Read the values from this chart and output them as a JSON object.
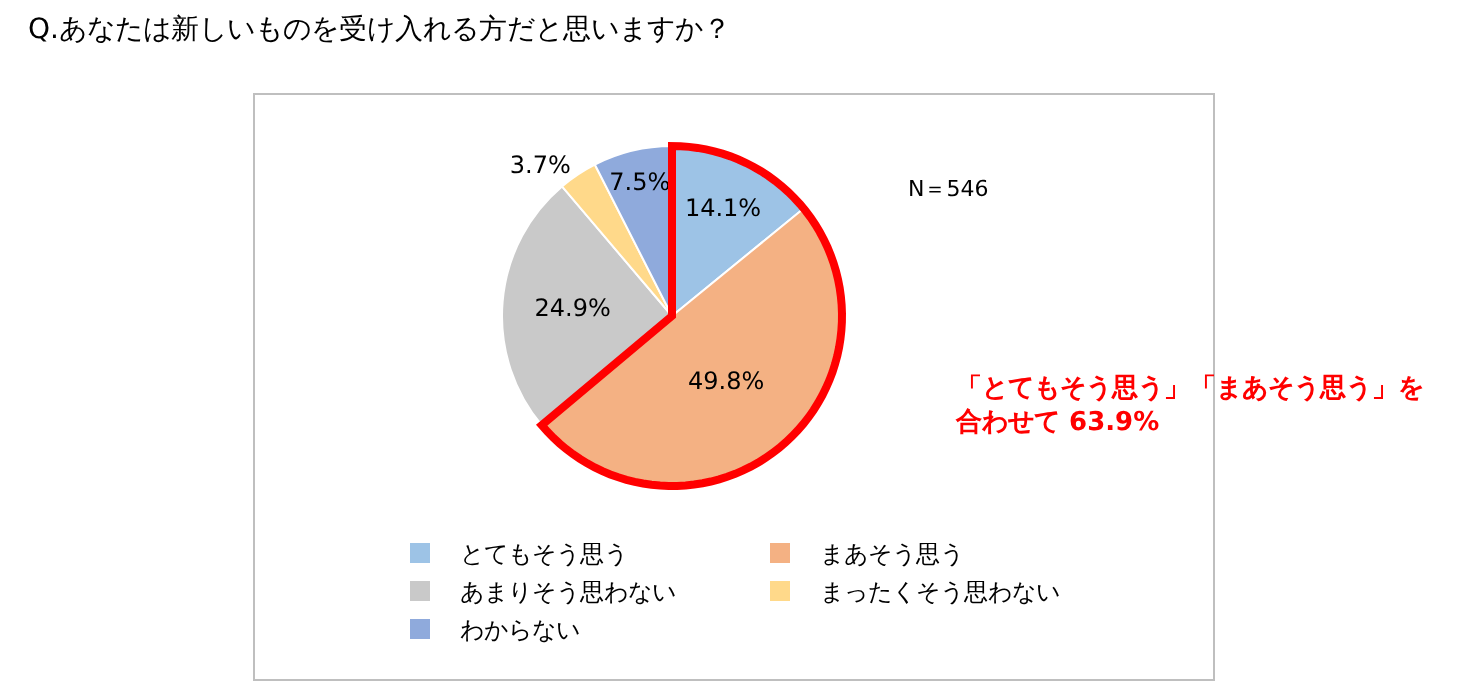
{
  "chart_data": {
    "type": "pie",
    "title": "Q.あなたは新しいものを受け入れる方だと思いますか？",
    "categories": [
      "とてもそう思う",
      "まあそう思う",
      "あまりそう思わない",
      "まったくそう思わない",
      "わからない"
    ],
    "values": [
      14.1,
      49.8,
      24.9,
      3.7,
      7.5
    ],
    "value_labels": [
      "14.1%",
      "49.8%",
      "24.9%",
      "3.7%",
      "7.5%"
    ],
    "colors": [
      "#9dc3e6",
      "#f4b183",
      "#c9c9c9",
      "#ffd98a",
      "#8faadc"
    ],
    "annotations": [
      "N＝546",
      "「とてもそう思う」「まあそう思う」を合わせて 63.9%"
    ],
    "legend": "bottom"
  }
}
